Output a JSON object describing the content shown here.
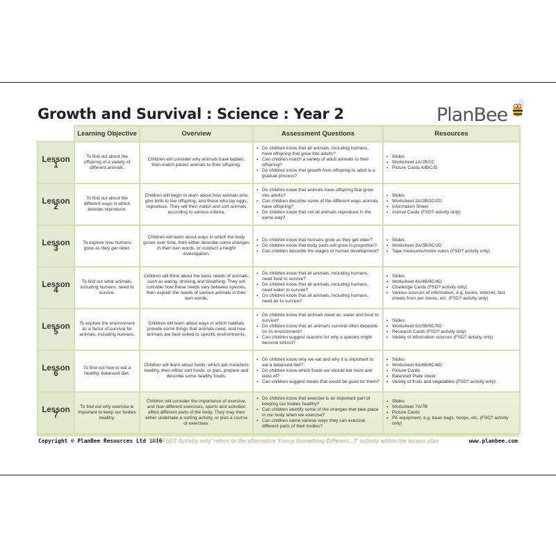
{
  "title": "Growth and Survival : Science : Year 2",
  "logo": "PlanBee",
  "headers": [
    "Learning Objective",
    "Overview",
    "Assessment Questions",
    "Resources"
  ],
  "lessons": [
    {
      "label": "Lesson 1",
      "objective": "To find out about the offspring of a variety of different animals.",
      "overview": "Children will consider why animals have babies, then match parent animals to their offspring.",
      "questions": [
        "Do children know that all animals, including humans, have offspring that grow into adults?",
        "Can children match a variety of adult animals to their offspring?",
        "Do children know that growth from offspring to adult is a gradual process?"
      ],
      "resources": [
        "Slides",
        "Worksheet 1A/1B/1C",
        "Picture Cards A/B/C/D"
      ]
    },
    {
      "label": "Lesson 2",
      "objective": "To find out about the different ways in which animals reproduce.",
      "overview": "Children will begin to learn about how animals who give birth to live offspring, and those who lay eggs, reproduce. They will then match and sort animals according to various criteria.",
      "questions": [
        "Do children know that animals have offspring that grow into adults?",
        "Can children describe some of the different ways animals have offspring?",
        "Do children know that not all animals reproduce in the same way?"
      ],
      "resources": [
        "Slides",
        "Worksheet 2A/2B/2C/2D",
        "Information Sheet",
        "Animal Cards (FSD? activity only)"
      ]
    },
    {
      "label": "Lesson 3",
      "objective": "To explore how humans grow as they get older.",
      "overview": "Children will learn about ways in which the body grows over time, then either describe some changes in their own words, or conduct a height investigation.",
      "questions": [
        "Do children know that humans grow as they get older?",
        "Do children know that body parts will grow in proportion?",
        "Can children describe the stages of human development?"
      ],
      "resources": [
        "Slides",
        "Worksheet 3A/3B/3C/3D",
        "Tape measures/metre rulers (FSD? activity only)"
      ]
    },
    {
      "label": "Lesson 4",
      "objective": "To find out what animals, including humans, need to survive.",
      "overview": "Children will think about the basic needs of animals, such as eating, drinking and breathing. They will consider how these needs vary between species, then explain the needs of various animals in their own words.",
      "questions": [
        "Do children know that all animals, including humans, need food to survive?",
        "Do children know that all animals, including humans, need water to survive?",
        "Do children know that all animals, including humans, need air to survive?"
      ],
      "resources": [
        "Slides",
        "Worksheet 4A/4B/4C/4D",
        "Challenge Cards (FSD? activity only)",
        "Various sources of information, e.g. books, internet, fact sheets from pet stores, etc. (FSD? activity only)"
      ]
    },
    {
      "label": "Lesson 5",
      "objective": "To explore the environment as a factor of survival for animals, including humans.",
      "overview": "Children will learn about ways in which habitats provide some things that animals need, and how animals are best suited to specific environments.",
      "questions": [
        "Do children know that animals need air, water and food to survive?",
        "Do children know that an animal's survival often depends on its environment?",
        "Can children suggest reasons for why a species might become extinct?"
      ],
      "resources": [
        "Slides",
        "Worksheet 5A/5B/5C/5D",
        "Research Cards (FSD? activity only)",
        "Variety of information sources (FSD? activity only)"
      ]
    },
    {
      "label": "Lesson 6",
      "objective": "To find out how to eat a healthy, balanced diet.",
      "overview": "Children will learn about foods: which are more/less healthy, then either sort foods, or plan, prepare and describe some healthy foods.",
      "questions": [
        "Do children know why we eat and why it is important to eat a balanced diet?",
        "Do children know which foods we should eat most and least of?",
        "Can children suggest meals that would be good for them?"
      ],
      "resources": [
        "Slides",
        "Worksheet 6A/6B/6C/6D",
        "Picture Cards",
        "Balanced Plate sheet",
        "Variety of fruits and vegetables (FSD? activity only)"
      ]
    },
    {
      "label": "Lesson 7",
      "objective": "To find out why exercise is important to keep our bodies healthy.",
      "overview": "Children will consider the importance of exercise, and how different exercises, sports and activities affect different parts of the body. They may then either undertake a sorting activity, or plan a course of exercises.",
      "questions": [
        "Do children know that exercise is an important part of keeping our bodies healthy?",
        "Can children identify some of the changes that take place in our body when we exercise?",
        "Can children name various ways they can exercise different parts of their bodies?"
      ],
      "resources": [
        "Slides",
        "Worksheet 7A/7B",
        "Picture Cards",
        "PE equipment, e.g. bean bags, hoops, etc. (FSD? activity only)"
      ]
    }
  ],
  "footer": {
    "copyright": "Copyright © PlanBee Resources Ltd 2016",
    "note": "NB: 'FSD? Activity only' refers to the alternative 'Fancy Something Different...?' activity within the lesson plan",
    "website": "www.planbee.com"
  }
}
